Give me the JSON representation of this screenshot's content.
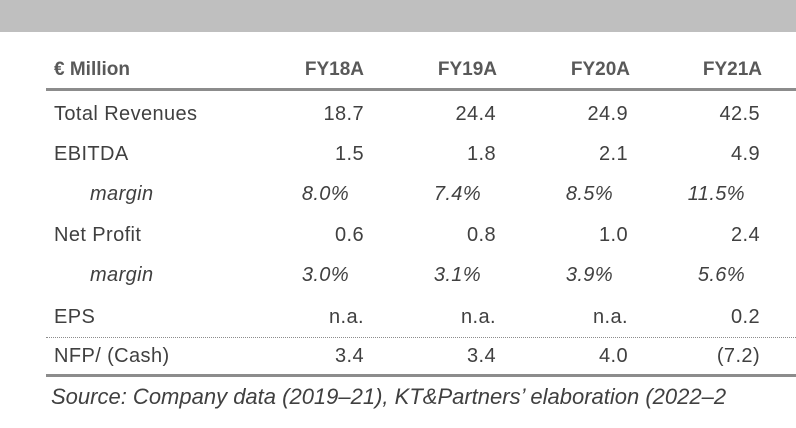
{
  "table": {
    "header": {
      "label": "€ Million",
      "columns": [
        "FY18A",
        "FY19A",
        "FY20A",
        "FY21A"
      ]
    },
    "rows": [
      {
        "label": "Total Revenues",
        "values": [
          "18.7",
          "24.4",
          "24.9",
          "42.5"
        ],
        "italic": false
      },
      {
        "label": "EBITDA",
        "values": [
          "1.5",
          "1.8",
          "2.1",
          "4.9"
        ],
        "italic": false
      },
      {
        "label": "margin",
        "values": [
          "8.0%",
          "7.4%",
          "8.5%",
          "11.5%"
        ],
        "italic": true
      },
      {
        "label": "Net Profit",
        "values": [
          "0.6",
          "0.8",
          "1.0",
          "2.4"
        ],
        "italic": false
      },
      {
        "label": "margin",
        "values": [
          "3.0%",
          "3.1%",
          "3.9%",
          "5.6%"
        ],
        "italic": true
      },
      {
        "label": "EPS",
        "values": [
          "n.a.",
          "n.a.",
          "n.a.",
          "0.2"
        ],
        "italic": false
      },
      {
        "label": "NFP/ (Cash)",
        "values": [
          "3.4",
          "3.4",
          "4.0",
          "(7.2)"
        ],
        "italic": false
      }
    ]
  },
  "source": "Source: Company data (2019–21), KT&Partners’ elaboration (2022–2"
}
